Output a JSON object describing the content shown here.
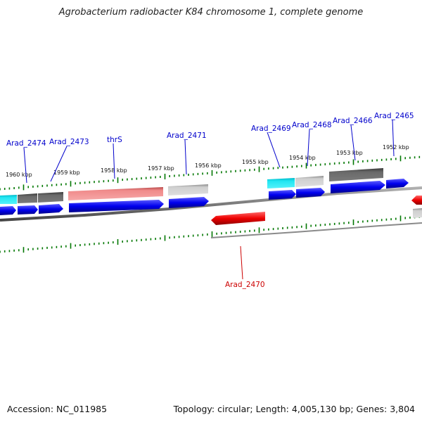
{
  "title": "Agrobacterium radiobacter K84 chromosome 1, complete genome",
  "footer": {
    "accession": "Accession: NC_011985",
    "topology": "Topology: circular; Length: 4,005,130 bp; Genes: 3,804"
  },
  "colors": {
    "forward_gene": "#0000ee",
    "reverse_gene": "#ee0000",
    "label_forward": "#0000cc",
    "label_reverse": "#cc0000",
    "ticks": "#007700",
    "backbone": "#808080"
  },
  "kbp_labels": [
    "1960 kbp",
    "1959 kbp",
    "1958 kbp",
    "1957 kbp",
    "1956 kbp",
    "1955 kbp",
    "1954 kbp",
    "1953 kbp",
    "1952 kbp"
  ],
  "gene_labels": {
    "arad_2474": "Arad_2474",
    "arad_2473": "Arad_2473",
    "thrs": "thrS",
    "arad_2471": "Arad_2471",
    "arad_2470": "Arad_2470",
    "arad_2469": "Arad_2469",
    "arad_2468": "Arad_2468",
    "arad_2466": "Arad_2466",
    "arad_2465": "Arad_2465"
  }
}
